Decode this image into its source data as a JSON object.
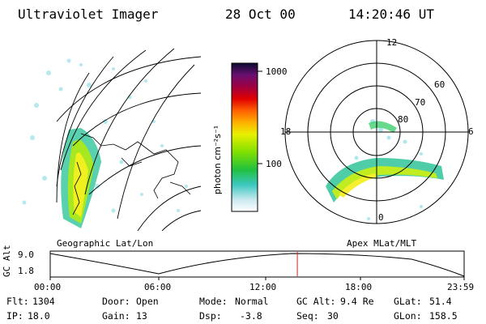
{
  "header": {
    "instrument": "Ultraviolet Imager",
    "date": "28 Oct 00",
    "time": "14:20:46 UT"
  },
  "colorbar": {
    "unit_label": "photon cm⁻²s⁻¹",
    "ticks": [
      "1000",
      "100"
    ]
  },
  "polar": {
    "mlt_labels": [
      "12",
      "18",
      "6",
      "0"
    ],
    "mlat_labels": [
      "60",
      "70",
      "80"
    ]
  },
  "panel_labels": {
    "left": "Geographic Lat/Lon",
    "right": "Apex MLat/MLT"
  },
  "altitude_strip": {
    "axis_label": "GC Alt",
    "y_ticks": [
      "9.0",
      "1.8"
    ],
    "time_ticks": [
      "00:00",
      "06:00",
      "12:00",
      "18:00",
      "23:59"
    ],
    "current_time_fraction": 0.597
  },
  "info": {
    "flt_label": "Flt:",
    "flt_value": "1304",
    "ip_label": "IP:",
    "ip_value": "18.0",
    "door_label": "Door:",
    "door_value": "Open",
    "gain_label": "Gain:",
    "gain_value": "13",
    "mode_label": "Mode:",
    "mode_value": "Normal",
    "dsp_label": "Dsp:",
    "dsp_value": "-3.8",
    "gcalt_label": "GC Alt:",
    "gcalt_value": "9.4 Re",
    "seq_label": "Seq:",
    "seq_value": "30",
    "glat_label": "GLat:",
    "glat_value": "51.4",
    "glon_label": "GLon:",
    "glon_value": "158.5"
  },
  "colors": {
    "line": "#000000",
    "marker": "#cc2222"
  }
}
